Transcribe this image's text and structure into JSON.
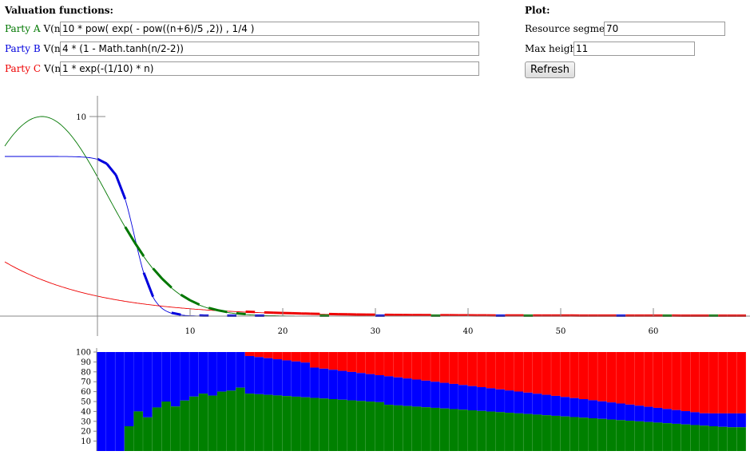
{
  "valuation": {
    "title": "Valuation functions:",
    "parties": [
      {
        "name": "Party A",
        "vn": "V(n)=",
        "expr": "10 * pow( exp( - pow((n+6)/5 ,2)) , 1/4 )",
        "color": "#007700"
      },
      {
        "name": "Party B",
        "vn": "V(n)=",
        "expr": "4 * (1 - Math.tanh(n/2-2))",
        "color": "#0000dd"
      },
      {
        "name": "Party C",
        "vn": "V(n)=",
        "expr": "1 * exp(-(1/10) * n)",
        "color": "#ee0000"
      }
    ]
  },
  "plot": {
    "title": "Plot:",
    "segments_label": "Resource segments:",
    "segments_value": "70",
    "maxheight_label": "Max height:",
    "maxheight_value": "11",
    "refresh_label": "Refresh"
  },
  "chart_data": [
    {
      "type": "line",
      "x_ticks": [
        "10",
        "20",
        "30",
        "40",
        "50",
        "60"
      ],
      "y_ticks": [
        "10"
      ],
      "xlim": [
        -10,
        70
      ],
      "ylim": [
        0,
        11
      ],
      "series": [
        {
          "color": "#007700"
        },
        {
          "color": "#0000dd"
        },
        {
          "color": "#ee0000"
        }
      ]
    },
    {
      "type": "bar",
      "y_ticks": [
        "10",
        "20",
        "30",
        "40",
        "50",
        "60",
        "70",
        "80",
        "90",
        "100"
      ],
      "ylim": [
        0,
        100
      ],
      "colors": {
        "A": "#008000",
        "B": "#0000ff",
        "C": "#ff0000"
      }
    }
  ]
}
